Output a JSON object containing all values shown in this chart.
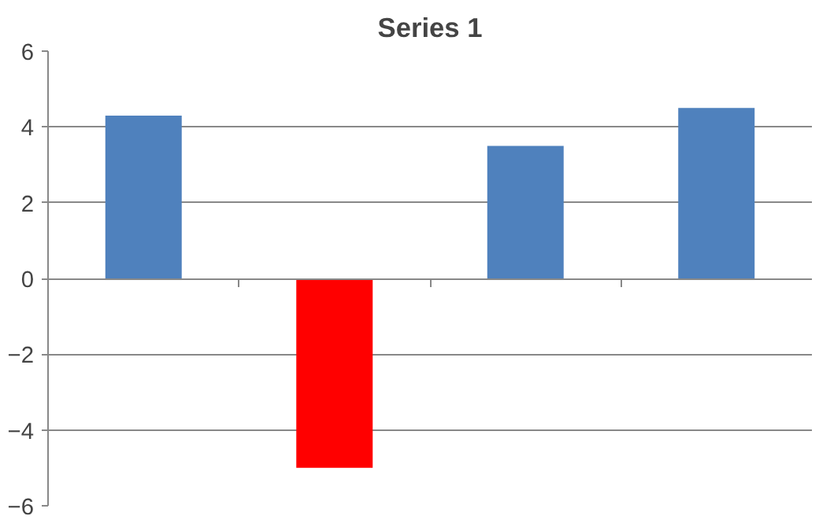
{
  "chart_data": {
    "type": "bar",
    "title": "Series 1",
    "categories": [
      null,
      null,
      null,
      null
    ],
    "values": [
      4.3,
      -5,
      3.5,
      4.5
    ],
    "colors": [
      "#4f81bd",
      "#ff0000",
      "#4f81bd",
      "#4f81bd"
    ],
    "ylim": [
      -6,
      6
    ],
    "yticks": [
      -6,
      -4,
      -2,
      0,
      2,
      4,
      6
    ],
    "grid": "y",
    "tick_labels": "y"
  }
}
